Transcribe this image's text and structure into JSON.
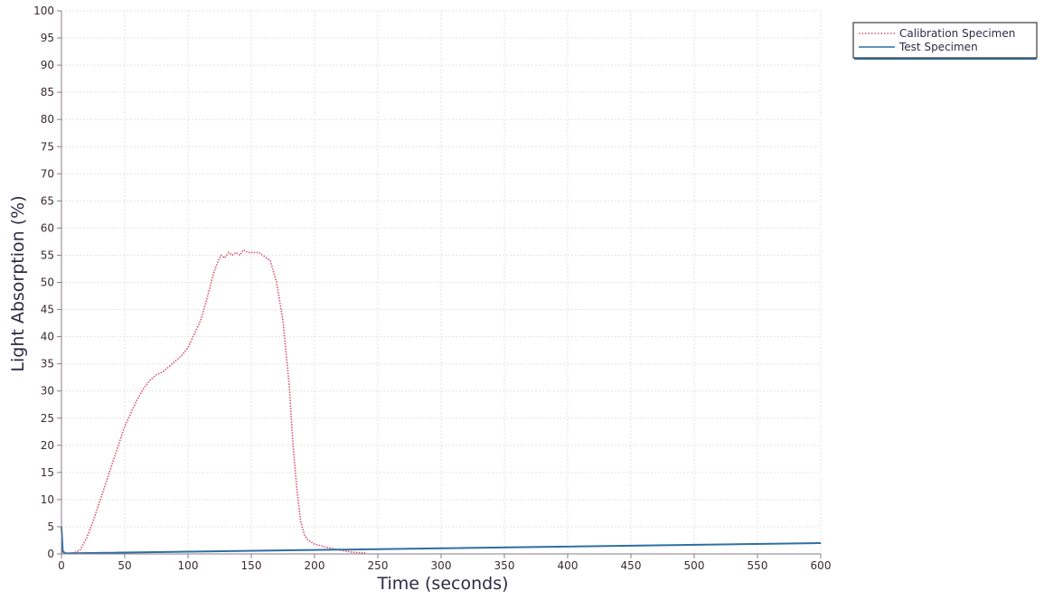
{
  "chart_data": {
    "type": "line",
    "title": "",
    "xlabel": "Time (seconds)",
    "ylabel": "Light Absorption (%)",
    "xlim": [
      0,
      600
    ],
    "ylim": [
      0,
      100
    ],
    "x_ticks": [
      "0",
      "50",
      "100",
      "150",
      "200",
      "250",
      "300",
      "350",
      "400",
      "450",
      "500",
      "550",
      "600"
    ],
    "y_ticks": [
      "0",
      "5",
      "10",
      "15",
      "20",
      "25",
      "30",
      "35",
      "40",
      "45",
      "50",
      "55",
      "60",
      "65",
      "70",
      "75",
      "80",
      "85",
      "90",
      "95",
      "100"
    ],
    "grid": true,
    "legend_position": "top-right",
    "series": [
      {
        "name": "Calibration Specimen",
        "color": "#d9506e",
        "line_style": "dotted",
        "x": [
          0,
          5,
          10,
          15,
          20,
          25,
          30,
          35,
          40,
          45,
          50,
          55,
          60,
          65,
          70,
          75,
          80,
          85,
          90,
          95,
          100,
          105,
          110,
          115,
          120,
          123,
          126,
          129,
          132,
          135,
          138,
          141,
          144,
          147,
          150,
          153,
          156,
          159,
          162,
          165,
          170,
          175,
          180,
          183,
          186,
          189,
          192,
          195,
          200,
          210,
          220,
          230,
          240
        ],
        "y": [
          0.3,
          0.1,
          0.2,
          0.8,
          3,
          6,
          9.5,
          13,
          16.5,
          20,
          23.5,
          26,
          28.5,
          30.5,
          32,
          33,
          33.5,
          34.5,
          35.5,
          36.5,
          38,
          40.5,
          43,
          47,
          51.5,
          53.5,
          55,
          54.5,
          55.5,
          55,
          55.5,
          55,
          56,
          55.5,
          55.5,
          55.5,
          55.5,
          55,
          54.5,
          54,
          50,
          43,
          31,
          20,
          12,
          6,
          3.5,
          2.5,
          1.8,
          1.2,
          0.7,
          0.3,
          0.2
        ]
      },
      {
        "name": "Test Specimen",
        "color": "#2e6fa3",
        "line_style": "solid",
        "x": [
          0,
          1,
          3,
          600
        ],
        "y": [
          5,
          0.5,
          0.1,
          2
        ]
      }
    ]
  }
}
